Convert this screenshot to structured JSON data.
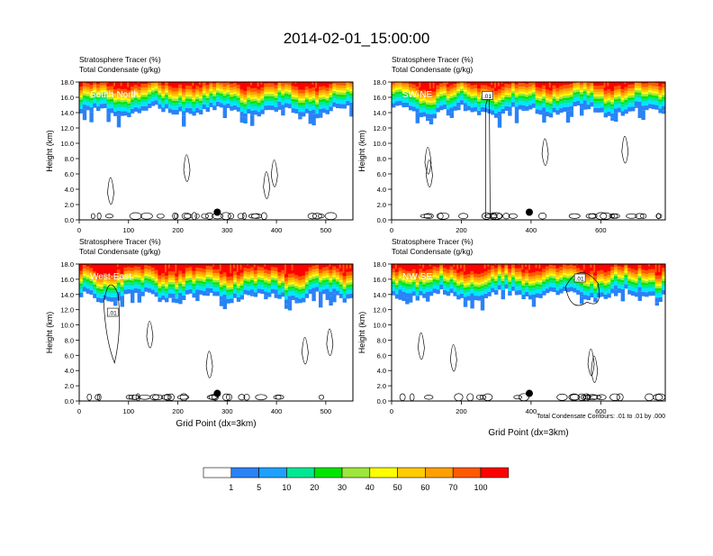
{
  "page_title": "2014-02-01_15:00:00",
  "colors": {
    "levels": [
      "#ffffff",
      "#2a82f5",
      "#1ea0ff",
      "#00e6ff",
      "#00e893",
      "#00e600",
      "#9ee63c",
      "#ffff00",
      "#ffcc00",
      "#ffa000",
      "#ff5a00",
      "#ff0000"
    ],
    "panel_labels": "#ffffff",
    "contour": "#000000"
  },
  "chart_data": {
    "type": "heatmap",
    "title": "2014-02-01_15:00:00",
    "colorbar": {
      "tick_labels": [
        "1",
        "5",
        "10",
        "20",
        "30",
        "40",
        "50",
        "60",
        "70",
        "100"
      ],
      "n_boxes": 11
    },
    "footnote": "Total Condensate Contours: .01 to .01 by .000",
    "panels": [
      {
        "id": "south-north",
        "label": "South-North",
        "title_line1": "Stratosphere Tracer   (%)",
        "title_line2": "Total Condensate   (g/kg)",
        "xlabel": "",
        "ylabel": "Height (km)",
        "xlim": [
          0,
          555
        ],
        "ylim": [
          0,
          18
        ],
        "x_ticks": [
          "0",
          "100",
          "200",
          "300",
          "400",
          "500"
        ],
        "y_ticks": [
          "0.0",
          "2.0",
          "4.0",
          "6.0",
          "8.0",
          "10.0",
          "12.0",
          "14.0",
          "16.0",
          "18.0"
        ],
        "tropopause_km": 15.0,
        "marker_x": 280,
        "marker_km": 1.0,
        "contour_label": "",
        "contour_label_x": 0,
        "contour_label_km": 0
      },
      {
        "id": "sw-ne",
        "label": "SW-NE",
        "title_line1": "Stratosphere Tracer   (%)",
        "title_line2": "Total Condensate   (g/kg)",
        "xlabel": "",
        "ylabel": "Height (km)",
        "xlim": [
          0,
          785
        ],
        "ylim": [
          0,
          18
        ],
        "x_ticks": [
          "0",
          "200",
          "400",
          "600"
        ],
        "y_ticks": [
          "0.0",
          "2.0",
          "4.0",
          "6.0",
          "8.0",
          "10.0",
          "12.0",
          "14.0",
          "16.0",
          "18.0"
        ],
        "tropopause_km": 15.0,
        "marker_x": 395,
        "marker_km": 1.0,
        "contour_label": ".01",
        "contour_label_x": 275,
        "contour_label_km": 16.2
      },
      {
        "id": "west-east",
        "label": "West-East",
        "title_line1": "Stratosphere Tracer   (%)",
        "title_line2": "Total Condensate   (g/kg)",
        "xlabel": "Grid Point (dx=3km)",
        "ylabel": "Height (km)",
        "xlim": [
          0,
          555
        ],
        "ylim": [
          0,
          18
        ],
        "x_ticks": [
          "0",
          "100",
          "200",
          "300",
          "400",
          "500"
        ],
        "y_ticks": [
          "0.0",
          "2.0",
          "4.0",
          "6.0",
          "8.0",
          "10.0",
          "12.0",
          "14.0",
          "16.0",
          "18.0"
        ],
        "tropopause_km": 14.5,
        "marker_x": 280,
        "marker_km": 1.0,
        "contour_label": ".01",
        "contour_label_x": 68,
        "contour_label_km": 11.6
      },
      {
        "id": "nw-se",
        "label": "NW-SE",
        "title_line1": "Stratosphere Tracer   (%)",
        "title_line2": "Total Condensate   (g/kg)",
        "xlabel": "Grid Point (dx=3km)",
        "ylabel": "Height (km)",
        "xlim": [
          0,
          785
        ],
        "ylim": [
          0,
          18
        ],
        "x_ticks": [
          "0",
          "200",
          "400",
          "600"
        ],
        "y_ticks": [
          "0.0",
          "2.0",
          "4.0",
          "6.0",
          "8.0",
          "10.0",
          "12.0",
          "14.0",
          "16.0",
          "18.0"
        ],
        "tropopause_km": 14.8,
        "marker_x": 395,
        "marker_km": 1.0,
        "contour_label": ".01",
        "contour_label_x": 540,
        "contour_label_km": 16.1
      }
    ]
  }
}
